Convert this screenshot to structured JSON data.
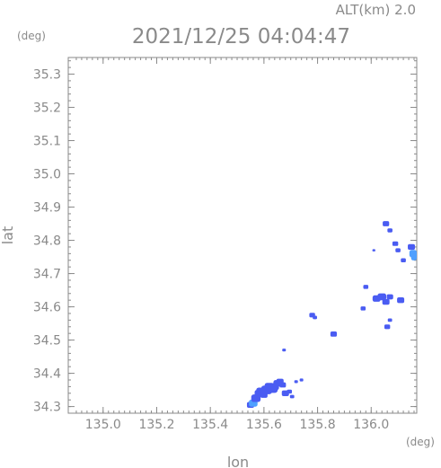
{
  "chart_data": {
    "type": "scatter",
    "title": "2021/12/25 04:04:47",
    "subtitle": "ALT(km) 2.0",
    "xlabel": "lon",
    "ylabel": "lat",
    "x_unit": "(deg)",
    "y_unit": "(deg)",
    "xlim": [
      134.87,
      136.17
    ],
    "ylim": [
      34.28,
      35.35
    ],
    "x_ticks": [
      "135.0",
      "135.2",
      "135.4",
      "135.6",
      "135.8",
      "136.0"
    ],
    "y_ticks": [
      "34.3",
      "34.4",
      "34.5",
      "34.6",
      "34.7",
      "34.8",
      "34.9",
      "35.0",
      "35.1",
      "35.2",
      "35.3"
    ],
    "grid": false,
    "colors": {
      "echo": "#4a5cf2",
      "echo_light": "#4fa0ff",
      "axis": "#8a8a8a"
    },
    "points": [
      {
        "lon": 135.55,
        "lat": 34.305,
        "s": 1.0
      },
      {
        "lon": 135.56,
        "lat": 34.31,
        "s": 1.2,
        "light": true
      },
      {
        "lon": 135.57,
        "lat": 34.325,
        "s": 1.3
      },
      {
        "lon": 135.58,
        "lat": 34.34,
        "s": 1.1
      },
      {
        "lon": 135.59,
        "lat": 34.345,
        "s": 1.4
      },
      {
        "lon": 135.6,
        "lat": 34.335,
        "s": 1.0
      },
      {
        "lon": 135.61,
        "lat": 34.35,
        "s": 1.5
      },
      {
        "lon": 135.62,
        "lat": 34.36,
        "s": 1.3
      },
      {
        "lon": 135.63,
        "lat": 34.355,
        "s": 1.6
      },
      {
        "lon": 135.64,
        "lat": 34.36,
        "s": 1.2
      },
      {
        "lon": 135.65,
        "lat": 34.37,
        "s": 1.1
      },
      {
        "lon": 135.66,
        "lat": 34.375,
        "s": 1.0
      },
      {
        "lon": 135.67,
        "lat": 34.365,
        "s": 0.9
      },
      {
        "lon": 135.68,
        "lat": 34.34,
        "s": 1.0
      },
      {
        "lon": 135.695,
        "lat": 34.345,
        "s": 0.7
      },
      {
        "lon": 135.705,
        "lat": 34.33,
        "s": 0.6
      },
      {
        "lon": 135.72,
        "lat": 34.375,
        "s": 0.5
      },
      {
        "lon": 135.74,
        "lat": 34.38,
        "s": 0.5
      },
      {
        "lon": 135.675,
        "lat": 34.47,
        "s": 0.5
      },
      {
        "lon": 135.78,
        "lat": 34.575,
        "s": 0.8
      },
      {
        "lon": 135.79,
        "lat": 34.568,
        "s": 0.6
      },
      {
        "lon": 135.86,
        "lat": 34.518,
        "s": 0.9
      },
      {
        "lon": 135.97,
        "lat": 34.595,
        "s": 0.7
      },
      {
        "lon": 135.98,
        "lat": 34.66,
        "s": 0.7
      },
      {
        "lon": 136.02,
        "lat": 34.625,
        "s": 1.1
      },
      {
        "lon": 136.04,
        "lat": 34.63,
        "s": 1.2
      },
      {
        "lon": 136.055,
        "lat": 34.615,
        "s": 1.0
      },
      {
        "lon": 136.07,
        "lat": 34.63,
        "s": 0.9
      },
      {
        "lon": 136.11,
        "lat": 34.62,
        "s": 1.0
      },
      {
        "lon": 136.06,
        "lat": 34.54,
        "s": 0.8
      },
      {
        "lon": 136.07,
        "lat": 34.56,
        "s": 0.6
      },
      {
        "lon": 136.055,
        "lat": 34.85,
        "s": 0.9
      },
      {
        "lon": 136.07,
        "lat": 34.83,
        "s": 0.7
      },
      {
        "lon": 136.09,
        "lat": 34.79,
        "s": 0.8
      },
      {
        "lon": 136.1,
        "lat": 34.77,
        "s": 0.7
      },
      {
        "lon": 136.12,
        "lat": 34.74,
        "s": 0.7
      },
      {
        "lon": 136.15,
        "lat": 34.78,
        "s": 1.0
      },
      {
        "lon": 136.16,
        "lat": 34.76,
        "s": 1.3,
        "light": true
      },
      {
        "lon": 136.165,
        "lat": 34.75,
        "s": 1.2,
        "light": true
      },
      {
        "lon": 136.01,
        "lat": 34.77,
        "s": 0.4
      }
    ]
  }
}
